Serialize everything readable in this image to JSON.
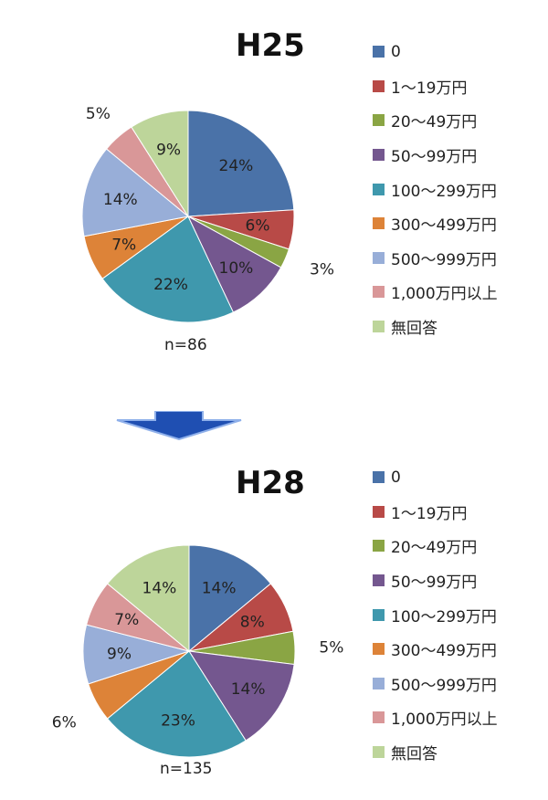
{
  "colors": {
    "0": "#4a72a8",
    "1〜19万円": "#b84a47",
    "20〜49万円": "#8aa544",
    "50〜99万円": "#74578f",
    "100〜299万円": "#3f98ad",
    "300〜499万円": "#dd8338",
    "500〜999万円": "#98aed8",
    "1,000万円以上": "#d99798",
    "無回答": "#bdd59a",
    "arrow": "#1f4fb2"
  },
  "chart_data": [
    {
      "type": "pie",
      "title": "H25",
      "n_label": "n=86",
      "categories": [
        "0",
        "1〜19万円",
        "20〜49万円",
        "50〜99万円",
        "100〜299万円",
        "300〜499万円",
        "500〜999万円",
        "1,000万円以上",
        "無回答"
      ],
      "values": [
        24,
        6,
        3,
        10,
        22,
        7,
        14,
        5,
        9
      ],
      "data_labels": [
        "24%",
        "6%",
        "3%",
        "10%",
        "22%",
        "7%",
        "14%",
        "5%",
        "9%"
      ],
      "legend_position": "right"
    },
    {
      "type": "pie",
      "title": "H28",
      "n_label": "n=135",
      "categories": [
        "0",
        "1〜19万円",
        "20〜49万円",
        "50〜99万円",
        "100〜299万円",
        "300〜499万円",
        "500〜999万円",
        "1,000万円以上",
        "無回答"
      ],
      "values": [
        14,
        8,
        5,
        14,
        23,
        6,
        9,
        7,
        14
      ],
      "data_labels": [
        "14%",
        "8%",
        "5%",
        "14%",
        "23%",
        "6%",
        "9%",
        "7%",
        "14%"
      ],
      "legend_position": "right"
    }
  ]
}
